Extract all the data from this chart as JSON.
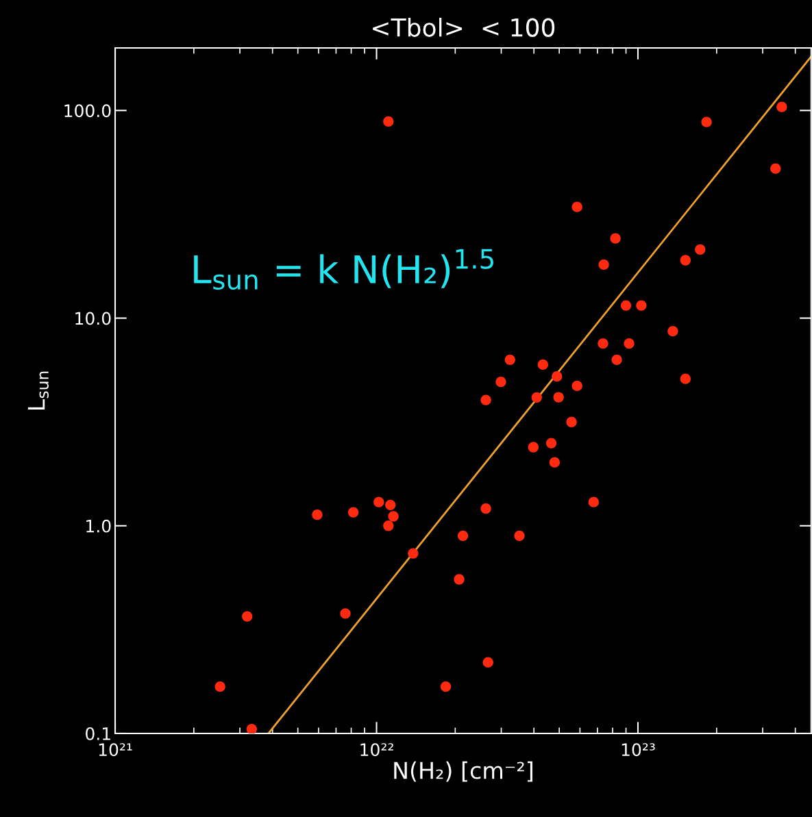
{
  "chart_data": {
    "type": "scatter",
    "title": "<Tbol>  < 100",
    "xlabel": "N(H₂) [cm⁻²]",
    "ylabel": "L$_{sun}$",
    "annotations": [
      "L$_{sun}$ = k N(H₂)$^{1.5}$"
    ],
    "log": "xy",
    "grid": false,
    "legend": false,
    "marker": "circle",
    "xlim": [
      1e+21,
      4.6e+23
    ],
    "ylim": [
      0.1,
      200
    ],
    "xticks": [
      {
        "value": 1e+21,
        "label": "10²¹"
      },
      {
        "value": 1e+22,
        "label": "10²²"
      },
      {
        "value": 1e+23,
        "label": "10²³"
      }
    ],
    "yticks": [
      {
        "value": 0.1,
        "label": "0.1"
      },
      {
        "value": 1,
        "label": "1.0"
      },
      {
        "value": 10,
        "label": "10.0"
      },
      {
        "value": 100,
        "label": "100.0"
      }
    ],
    "series": [
      {
        "color": "#ff2a10",
        "x": [
          1.11e+22,
          3.55e+23,
          1.83e+23,
          3.36e+23,
          5.85e+22,
          8.2e+22,
          7.4e+22,
          1.73e+23,
          1.52e+23,
          9e+22,
          1.03e+23,
          1.36e+23,
          7.35e+22,
          9.25e+22,
          3.24e+22,
          8.3e+22,
          4.33e+22,
          2.99e+22,
          4.9e+22,
          5.85e+22,
          2.62e+22,
          4.1e+22,
          4.97e+22,
          1.52e+23,
          5.57e+22,
          3.98e+22,
          4.66e+22,
          4.8e+22,
          6.77e+22,
          1.02e+22,
          1.13e+22,
          1.16e+22,
          1.11e+22,
          5.93e+21,
          8.15e+21,
          2.62e+22,
          2.14e+22,
          3.52e+22,
          1.38e+22,
          2.07e+22,
          7.6e+21,
          3.2e+21,
          2.67e+22,
          1.84e+22,
          2.52e+21,
          3.33e+21
        ],
        "values": [
          88.5,
          104,
          88,
          52.5,
          34.3,
          24.2,
          18.1,
          21.4,
          19.0,
          11.5,
          11.5,
          8.65,
          7.55,
          7.55,
          6.3,
          6.3,
          5.97,
          4.93,
          5.24,
          4.72,
          4.03,
          4.15,
          4.16,
          5.1,
          3.16,
          2.39,
          2.5,
          2.02,
          1.3,
          1.3,
          1.26,
          1.11,
          1.0,
          1.13,
          1.16,
          1.21,
          0.895,
          0.895,
          0.736,
          0.552,
          0.378,
          0.366,
          0.22,
          0.168,
          0.168,
          0.105
        ]
      },
      {
        "type": "line",
        "marker": "none",
        "color": "#f0a030",
        "x": [
          3.86e+21,
          4.6e+23
        ],
        "values": [
          0.1,
          182
        ]
      }
    ]
  }
}
